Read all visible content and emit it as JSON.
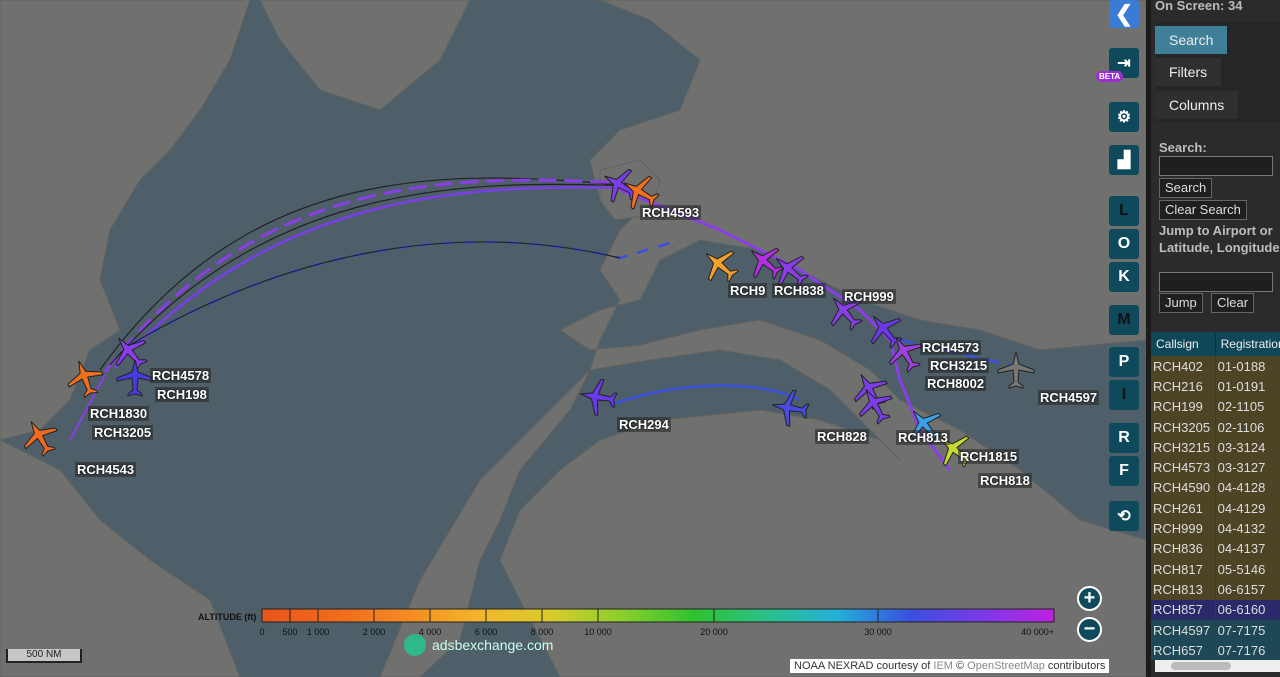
{
  "panel": {
    "on_screen": "On Screen: 34",
    "tabs": [
      "Search",
      "Filters",
      "Columns"
    ],
    "search_label": "Search:",
    "search_value": "",
    "search_button": "Search",
    "clear_search_button": "Clear Search",
    "jump_label": "Jump to Airport or Latitude, Longitude:",
    "jump_value": "",
    "jump_button": "Jump",
    "clear_button": "Clear"
  },
  "table": {
    "headers": [
      "Callsign",
      "Registration"
    ],
    "rows": [
      [
        "RCH402",
        "01-0188"
      ],
      [
        "RCH216",
        "01-0191"
      ],
      [
        "RCH199",
        "02-1105"
      ],
      [
        "RCH3205",
        "02-1106"
      ],
      [
        "RCH3215",
        "03-3124"
      ],
      [
        "RCH4573",
        "03-3127"
      ],
      [
        "RCH4590",
        "04-4128"
      ],
      [
        "RCH261",
        "04-4129"
      ],
      [
        "RCH999",
        "04-4132"
      ],
      [
        "RCH836",
        "04-4137"
      ],
      [
        "RCH817",
        "05-5146"
      ],
      [
        "RCH813",
        "06-6157"
      ],
      [
        "RCH857",
        "06-6160"
      ],
      [
        "RCH4597",
        "07-7175"
      ],
      [
        "RCH657",
        "07-7176"
      ]
    ],
    "selected": "RCH857"
  },
  "controls": {
    "beta": "BETA",
    "letters": [
      "L",
      "O",
      "K",
      "M",
      "P",
      "I",
      "R",
      "F"
    ],
    "icons": [
      "back-chevron-icon",
      "login-icon",
      "gear-icon",
      "leaderboard-icon",
      "replay-icon"
    ]
  },
  "legend": {
    "title": "ALTITUDE (ft)",
    "ticks": [
      "0",
      "500",
      "1 000",
      "2 000",
      "4 000",
      "6 000",
      "8 000",
      "10 000",
      "20 000",
      "30 000",
      "40 000+"
    ],
    "colors": [
      "#e8541a",
      "#ef6a1c",
      "#f58a22",
      "#f2b52a",
      "#d8cc2c",
      "#8cce2c",
      "#2ec22e",
      "#2bc08a",
      "#23b0d8",
      "#3a4fe0",
      "#7a3ae8",
      "#c020e0"
    ]
  },
  "map": {
    "scale": "500 NM",
    "brand": "adsbexchange.com",
    "attribution": {
      "prefix": "NOAA NEXRAD courtesy of ",
      "iem": "IEM",
      "copy": " © ",
      "osm": "OpenStreetMap",
      "suffix": " contributors"
    },
    "aircraft_labels": [
      "RCH4578",
      "RCH1830",
      "RCH198",
      "RCH3205",
      "RCH4543",
      "RCH4593",
      "RCH294",
      "RCH828",
      "RCH838",
      "RCH4573",
      "RCH3215",
      "RCH8002",
      "RCH4597",
      "RCH1815",
      "RCH818",
      "RCH999",
      "RCH813",
      "RCH9"
    ]
  },
  "zoom": {
    "in": "+",
    "out": "−"
  }
}
